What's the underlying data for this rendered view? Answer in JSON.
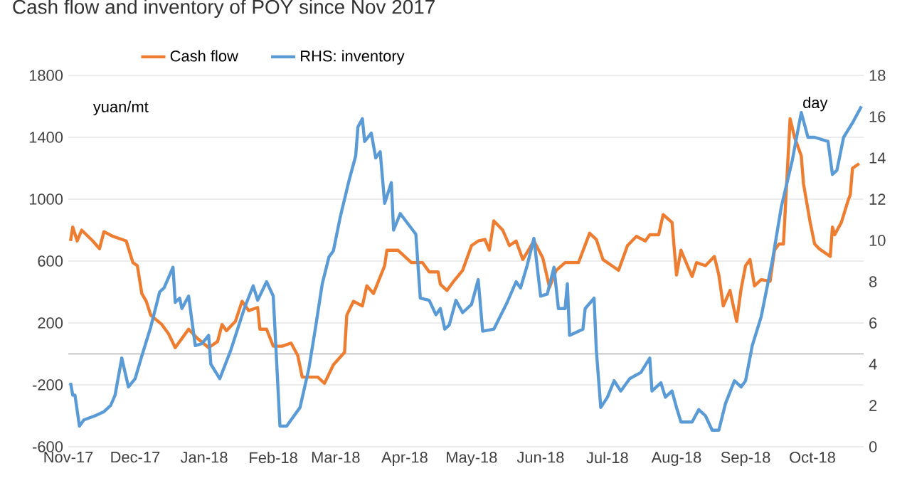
{
  "chart_data": {
    "type": "line",
    "title": "Cash flow and inventory of POY since Nov 2017",
    "ylabel": "yuan/mt",
    "y2label": "day",
    "xlim": [
      "2017-11-01",
      "2018-10-24"
    ],
    "xticks": [
      {
        "value": "2017-11-01",
        "label": "Nov-17"
      },
      {
        "value": "2017-12-01",
        "label": "Dec-17"
      },
      {
        "value": "2018-01-01",
        "label": "Jan-18"
      },
      {
        "value": "2018-02-01",
        "label": "Feb-18"
      },
      {
        "value": "2018-03-01",
        "label": "Mar-18"
      },
      {
        "value": "2018-04-01",
        "label": "Apr-18"
      },
      {
        "value": "2018-05-01",
        "label": "May-18"
      },
      {
        "value": "2018-06-01",
        "label": "Jun-18"
      },
      {
        "value": "2018-07-01",
        "label": "Jul-18"
      },
      {
        "value": "2018-08-01",
        "label": "Aug-18"
      },
      {
        "value": "2018-09-01",
        "label": "Sep-18"
      },
      {
        "value": "2018-10-01",
        "label": "Oct-18"
      }
    ],
    "ylim": [
      -600,
      1800
    ],
    "yticks": [
      -600,
      -200,
      200,
      600,
      1000,
      1400,
      1800
    ],
    "y2lim": [
      0,
      18
    ],
    "y2ticks": [
      0,
      2,
      4,
      6,
      8,
      10,
      12,
      14,
      16,
      18
    ],
    "grid": "y",
    "legend": "top",
    "marker": "none",
    "line_style": "solid",
    "series": [
      {
        "name": "Cash flow",
        "color": "#ed7d31",
        "x": [
          "2017-11-02",
          "2017-11-03",
          "2017-11-05",
          "2017-11-07",
          "2017-11-12",
          "2017-11-15",
          "2017-11-17",
          "2017-11-21",
          "2017-11-27",
          "2017-11-30",
          "2017-12-02",
          "2017-12-04",
          "2017-12-06",
          "2017-12-08",
          "2017-12-13",
          "2017-12-16",
          "2017-12-19",
          "2017-12-22",
          "2017-12-25",
          "2017-12-29",
          "2018-01-03",
          "2018-01-07",
          "2018-01-09",
          "2018-01-11",
          "2018-01-15",
          "2018-01-18",
          "2018-01-21",
          "2018-01-25",
          "2018-01-26",
          "2018-01-29",
          "2018-02-01",
          "2018-02-05",
          "2018-02-09",
          "2018-02-12",
          "2018-02-14",
          "2018-02-21",
          "2018-02-24",
          "2018-02-28",
          "2018-03-05",
          "2018-03-06",
          "2018-03-09",
          "2018-03-13",
          "2018-03-15",
          "2018-03-18",
          "2018-03-23",
          "2018-03-24",
          "2018-03-29",
          "2018-04-04",
          "2018-04-09",
          "2018-04-12",
          "2018-04-16",
          "2018-04-17",
          "2018-04-20",
          "2018-04-23",
          "2018-04-27",
          "2018-05-01",
          "2018-05-04",
          "2018-05-07",
          "2018-05-09",
          "2018-05-11",
          "2018-05-15",
          "2018-05-18",
          "2018-05-21",
          "2018-05-24",
          "2018-05-29",
          "2018-06-02",
          "2018-06-05",
          "2018-06-08",
          "2018-06-12",
          "2018-06-18",
          "2018-06-23",
          "2018-06-26",
          "2018-06-29",
          "2018-07-03",
          "2018-07-06",
          "2018-07-10",
          "2018-07-14",
          "2018-07-18",
          "2018-07-20",
          "2018-07-24",
          "2018-07-26",
          "2018-07-30",
          "2018-08-01",
          "2018-08-03",
          "2018-08-08",
          "2018-08-10",
          "2018-08-14",
          "2018-08-18",
          "2018-08-20",
          "2018-08-22",
          "2018-08-25",
          "2018-08-28",
          "2018-08-30",
          "2018-09-01",
          "2018-09-03",
          "2018-09-05",
          "2018-09-08",
          "2018-09-12",
          "2018-09-14",
          "2018-09-16",
          "2018-09-18",
          "2018-09-21",
          "2018-09-23",
          "2018-09-26",
          "2018-09-27",
          "2018-09-30",
          "2018-10-02",
          "2018-10-04",
          "2018-10-09",
          "2018-10-10",
          "2018-10-11",
          "2018-10-14",
          "2018-10-17",
          "2018-10-18",
          "2018-10-19",
          "2018-10-22"
        ],
        "values": [
          730,
          820,
          730,
          800,
          730,
          680,
          790,
          760,
          730,
          590,
          570,
          390,
          340,
          250,
          190,
          130,
          40,
          100,
          160,
          100,
          40,
          80,
          190,
          150,
          210,
          340,
          280,
          300,
          160,
          160,
          50,
          50,
          70,
          -10,
          -150,
          -150,
          -190,
          -70,
          10,
          250,
          340,
          310,
          440,
          390,
          570,
          670,
          670,
          590,
          590,
          530,
          530,
          450,
          410,
          470,
          540,
          700,
          730,
          740,
          670,
          860,
          800,
          700,
          730,
          610,
          730,
          620,
          430,
          540,
          590,
          590,
          780,
          740,
          610,
          570,
          540,
          700,
          760,
          730,
          770,
          770,
          900,
          850,
          510,
          670,
          500,
          590,
          570,
          630,
          510,
          310,
          410,
          210,
          420,
          570,
          610,
          440,
          480,
          470,
          670,
          710,
          710,
          1520,
          1400,
          1280,
          1100,
          850,
          710,
          680,
          630,
          820,
          770,
          850,
          990,
          1030,
          1200,
          1230
        ]
      },
      {
        "name": "RHS: inventory",
        "color": "#5b9bd5",
        "axis": "y2",
        "x": [
          "2017-11-02",
          "2017-11-03",
          "2017-11-04",
          "2017-11-06",
          "2017-11-08",
          "2017-11-13",
          "2017-11-17",
          "2017-11-20",
          "2017-11-22",
          "2017-11-25",
          "2017-11-28",
          "2017-12-01",
          "2017-12-04",
          "2017-12-08",
          "2017-12-12",
          "2017-12-14",
          "2017-12-18",
          "2017-12-19",
          "2017-12-21",
          "2017-12-22",
          "2017-12-25",
          "2017-12-28",
          "2017-12-31",
          "2018-01-03",
          "2018-01-04",
          "2018-01-08",
          "2018-01-13",
          "2018-01-19",
          "2018-01-23",
          "2018-01-25",
          "2018-01-29",
          "2018-02-01",
          "2018-02-04",
          "2018-02-07",
          "2018-02-13",
          "2018-02-17",
          "2018-02-20",
          "2018-02-23",
          "2018-02-26",
          "2018-02-28",
          "2018-03-03",
          "2018-03-07",
          "2018-03-10",
          "2018-03-11",
          "2018-03-13",
          "2018-03-14",
          "2018-03-17",
          "2018-03-19",
          "2018-03-21",
          "2018-03-23",
          "2018-03-26",
          "2018-03-27",
          "2018-03-30",
          "2018-04-06",
          "2018-04-08",
          "2018-04-12",
          "2018-04-15",
          "2018-04-17",
          "2018-04-19",
          "2018-04-21",
          "2018-04-24",
          "2018-04-27",
          "2018-05-01",
          "2018-05-04",
          "2018-05-06",
          "2018-05-11",
          "2018-05-17",
          "2018-05-21",
          "2018-05-23",
          "2018-05-26",
          "2018-05-29",
          "2018-06-01",
          "2018-06-04",
          "2018-06-07",
          "2018-06-09",
          "2018-06-12",
          "2018-06-13",
          "2018-06-14",
          "2018-06-20",
          "2018-06-21",
          "2018-06-25",
          "2018-06-26",
          "2018-06-28",
          "2018-07-01",
          "2018-07-04",
          "2018-07-07",
          "2018-07-11",
          "2018-07-16",
          "2018-07-20",
          "2018-07-21",
          "2018-07-25",
          "2018-07-27",
          "2018-07-30",
          "2018-08-01",
          "2018-08-03",
          "2018-08-08",
          "2018-08-11",
          "2018-08-14",
          "2018-08-17",
          "2018-08-20",
          "2018-08-23",
          "2018-08-27",
          "2018-08-30",
          "2018-09-01",
          "2018-09-04",
          "2018-09-08",
          "2018-09-13",
          "2018-09-17",
          "2018-09-22",
          "2018-09-26",
          "2018-09-29",
          "2018-10-02",
          "2018-10-08",
          "2018-10-10",
          "2018-10-12",
          "2018-10-15",
          "2018-10-19",
          "2018-10-23"
        ],
        "values": [
          3.1,
          2.5,
          2.5,
          1.0,
          1.3,
          1.5,
          1.7,
          2.0,
          2.5,
          4.3,
          2.9,
          3.3,
          4.4,
          5.8,
          7.5,
          7.7,
          8.7,
          7.0,
          7.2,
          6.7,
          7.3,
          4.9,
          5.0,
          5.4,
          4.0,
          3.3,
          4.7,
          6.7,
          7.8,
          7.1,
          8.0,
          7.3,
          1.0,
          1.0,
          1.9,
          3.8,
          5.8,
          7.9,
          9.2,
          9.5,
          11.1,
          12.9,
          14.1,
          15.5,
          15.9,
          14.8,
          15.2,
          14.0,
          14.3,
          11.8,
          12.8,
          10.5,
          11.3,
          10.3,
          7.2,
          7.1,
          6.4,
          6.7,
          5.7,
          5.9,
          7.1,
          6.5,
          6.9,
          8.1,
          5.6,
          5.7,
          7.0,
          8.0,
          7.7,
          8.8,
          10.1,
          7.3,
          7.4,
          8.7,
          6.7,
          6.7,
          7.9,
          5.4,
          5.7,
          6.7,
          7.2,
          4.7,
          1.9,
          2.4,
          3.2,
          2.7,
          3.3,
          3.6,
          4.3,
          2.7,
          3.1,
          2.4,
          2.7,
          1.9,
          1.2,
          1.2,
          1.8,
          1.5,
          0.8,
          0.8,
          2.1,
          3.2,
          2.9,
          3.2,
          4.9,
          6.3,
          9.0,
          11.6,
          13.9,
          16.2,
          15.0,
          15.0,
          14.8,
          13.2,
          13.4,
          15.0,
          15.7,
          16.5
        ]
      }
    ]
  }
}
